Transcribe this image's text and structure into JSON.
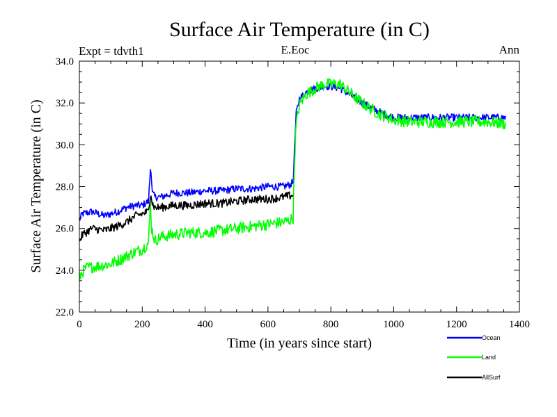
{
  "chart_data": {
    "type": "line",
    "title": "Surface Air Temperature (in C)",
    "subtitle_left": "Expt = tdvth1",
    "subtitle_center": "E.Eoc",
    "subtitle_right": "Ann",
    "xlabel": "Time (in years since start)",
    "ylabel": "Surface Air Temperature (in C)",
    "xlim": [
      0,
      1400
    ],
    "ylim": [
      22.0,
      34.0
    ],
    "xticks": [
      0,
      200,
      400,
      600,
      800,
      1000,
      1200,
      1400
    ],
    "xtick_labels": [
      "0",
      "200",
      "400",
      "600",
      "800",
      "1000",
      "1200",
      "1400"
    ],
    "yticks": [
      22,
      24,
      26,
      28,
      30,
      32,
      34
    ],
    "ytick_labels": [
      "22.0",
      "24.0",
      "26.0",
      "28.0",
      "30.0",
      "32.0",
      "34.0"
    ],
    "legend_position": "bottom-right, below plot",
    "series": [
      {
        "name": "Ocean",
        "color": "#0000ff",
        "x": [
          0,
          10,
          40,
          80,
          120,
          150,
          180,
          200,
          220,
          227,
          232,
          240,
          260,
          300,
          350,
          400,
          450,
          500,
          550,
          600,
          650,
          670,
          680,
          685,
          690,
          700,
          720,
          750,
          780,
          800,
          830,
          860,
          900,
          950,
          1000,
          1050,
          1100,
          1150,
          1200,
          1250,
          1300,
          1357
        ],
        "y": [
          26.4,
          26.7,
          26.8,
          26.6,
          26.8,
          27.0,
          27.1,
          27.1,
          27.3,
          29.1,
          27.7,
          27.5,
          27.5,
          27.7,
          27.7,
          27.8,
          27.8,
          27.9,
          27.9,
          28.0,
          28.0,
          28.1,
          28.2,
          30.0,
          31.5,
          32.2,
          32.5,
          32.7,
          32.8,
          32.8,
          32.7,
          32.4,
          32.0,
          31.6,
          31.3,
          31.3,
          31.3,
          31.3,
          31.3,
          31.3,
          31.3,
          31.3
        ]
      },
      {
        "name": "Land",
        "color": "#00ff00",
        "x": [
          0,
          5,
          20,
          60,
          100,
          140,
          180,
          200,
          220,
          226,
          230,
          240,
          260,
          300,
          350,
          400,
          450,
          500,
          550,
          600,
          650,
          670,
          680,
          685,
          690,
          700,
          720,
          750,
          780,
          800,
          830,
          860,
          900,
          950,
          1000,
          1050,
          1100,
          1150,
          1200,
          1250,
          1300,
          1357
        ],
        "y": [
          23.5,
          23.8,
          24.1,
          24.2,
          24.3,
          24.6,
          24.9,
          25.0,
          25.3,
          27.2,
          26.0,
          25.4,
          25.6,
          25.7,
          25.8,
          25.8,
          25.9,
          26.0,
          26.1,
          26.2,
          26.3,
          26.4,
          26.5,
          29.5,
          31.0,
          31.9,
          32.4,
          32.7,
          32.9,
          32.9,
          32.9,
          32.5,
          32.0,
          31.5,
          31.2,
          31.1,
          31.1,
          31.1,
          31.1,
          31.1,
          31.1,
          31.0
        ]
      },
      {
        "name": "AllSurf",
        "color": "#000000",
        "x": [
          0,
          10,
          40,
          80,
          120,
          150,
          180,
          200,
          220,
          227,
          232,
          240,
          260,
          300,
          350,
          400,
          450,
          500,
          550,
          600,
          650,
          680
        ],
        "y": [
          25.4,
          25.7,
          26.0,
          25.9,
          26.1,
          26.3,
          26.6,
          26.7,
          26.8,
          27.8,
          27.2,
          27.0,
          27.0,
          27.1,
          27.1,
          27.2,
          27.2,
          27.3,
          27.4,
          27.4,
          27.5,
          27.6
        ]
      }
    ]
  }
}
